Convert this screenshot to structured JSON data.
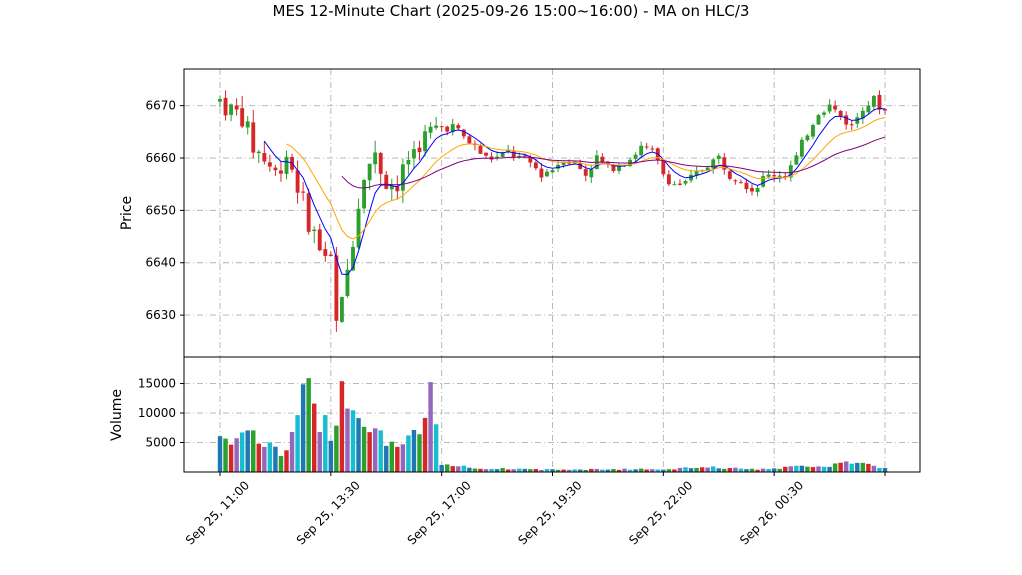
{
  "chart_data": {
    "type": "candlestick",
    "title": "MES 12-Minute Chart (2025-09-26 15:00~16:00) - MA on HLC/3",
    "price_panel": {
      "ylabel": "Price",
      "ylim": [
        6622,
        6677
      ],
      "yticks": [
        6630,
        6640,
        6650,
        6660,
        6670
      ],
      "grid": true
    },
    "volume_panel": {
      "ylabel": "Volume",
      "ylim": [
        0,
        19500
      ],
      "yticks": [
        5000,
        10000,
        15000
      ],
      "grid": true
    },
    "x_axis": {
      "tick_labels": [
        "Sep 25, 11:00",
        "Sep 25, 13:30",
        "Sep 25, 17:00",
        "Sep 25, 19:30",
        "Sep 25, 22:00",
        "Sep 26, 00:30"
      ],
      "tick_bar_index": [
        0,
        20,
        40,
        60,
        80,
        100
      ],
      "bar_count": 121,
      "bar_interval_minutes": 12
    },
    "colors": {
      "up": "#2ca02c",
      "down": "#d62728",
      "ma_fast": "#0000ff",
      "ma_mid": "#ffa500",
      "ma_slow": "#800080",
      "volume_a": "#1f77b4",
      "volume_b": "#2ca02c",
      "volume_c": "#d62728",
      "grid": "#b0b0b0"
    },
    "close_anchors": [
      [
        0,
        6671
      ],
      [
        2,
        6669
      ],
      [
        4,
        6668
      ],
      [
        6,
        6662
      ],
      [
        8,
        6660
      ],
      [
        10,
        6657
      ],
      [
        12,
        6661
      ],
      [
        14,
        6655
      ],
      [
        16,
        6648
      ],
      [
        18,
        6643
      ],
      [
        20,
        6640
      ],
      [
        21,
        6628
      ],
      [
        22,
        6632
      ],
      [
        24,
        6645
      ],
      [
        26,
        6658
      ],
      [
        28,
        6660
      ],
      [
        30,
        6656
      ],
      [
        32,
        6654
      ],
      [
        34,
        6660
      ],
      [
        36,
        6663
      ],
      [
        38,
        6665
      ],
      [
        40,
        6666
      ],
      [
        42,
        6666
      ],
      [
        44,
        6664
      ],
      [
        46,
        6662
      ],
      [
        48,
        6660
      ],
      [
        50,
        6660
      ],
      [
        52,
        6661
      ],
      [
        54,
        6660
      ],
      [
        56,
        6659
      ],
      [
        58,
        6657
      ],
      [
        60,
        6658
      ],
      [
        62,
        6660
      ],
      [
        64,
        6659
      ],
      [
        66,
        6657
      ],
      [
        68,
        6660
      ],
      [
        70,
        6658
      ],
      [
        72,
        6659
      ],
      [
        74,
        6660
      ],
      [
        76,
        6662
      ],
      [
        78,
        6661
      ],
      [
        80,
        6657
      ],
      [
        82,
        6655
      ],
      [
        84,
        6655
      ],
      [
        86,
        6657
      ],
      [
        88,
        6659
      ],
      [
        90,
        6660
      ],
      [
        92,
        6657
      ],
      [
        94,
        6656
      ],
      [
        96,
        6654
      ],
      [
        98,
        6656
      ],
      [
        100,
        6657
      ],
      [
        102,
        6657
      ],
      [
        104,
        6660
      ],
      [
        106,
        6665
      ],
      [
        108,
        6669
      ],
      [
        110,
        6670
      ],
      [
        112,
        6668
      ],
      [
        114,
        6666
      ],
      [
        116,
        6670
      ],
      [
        118,
        6671
      ],
      [
        120,
        6669
      ]
    ],
    "volume_anchors": [
      [
        0,
        6100
      ],
      [
        2,
        5200
      ],
      [
        4,
        8000
      ],
      [
        6,
        6500
      ],
      [
        8,
        4600
      ],
      [
        10,
        3800
      ],
      [
        12,
        3000
      ],
      [
        14,
        8600
      ],
      [
        16,
        15500
      ],
      [
        18,
        9000
      ],
      [
        20,
        6500
      ],
      [
        21,
        9500
      ],
      [
        22,
        17800
      ],
      [
        24,
        10500
      ],
      [
        26,
        9200
      ],
      [
        28,
        7600
      ],
      [
        30,
        5600
      ],
      [
        32,
        4200
      ],
      [
        34,
        5200
      ],
      [
        36,
        6600
      ],
      [
        38,
        12800
      ],
      [
        39,
        6500
      ],
      [
        40,
        1400
      ],
      [
        44,
        900
      ],
      [
        48,
        600
      ],
      [
        60,
        400
      ],
      [
        80,
        500
      ],
      [
        88,
        800
      ],
      [
        96,
        450
      ],
      [
        100,
        650
      ],
      [
        104,
        900
      ],
      [
        110,
        1100
      ],
      [
        112,
        1800
      ],
      [
        120,
        700
      ]
    ],
    "series": [
      {
        "ma_period": 5
      },
      {
        "ma_period": 13
      },
      {
        "ma_period": 34
      }
    ]
  }
}
